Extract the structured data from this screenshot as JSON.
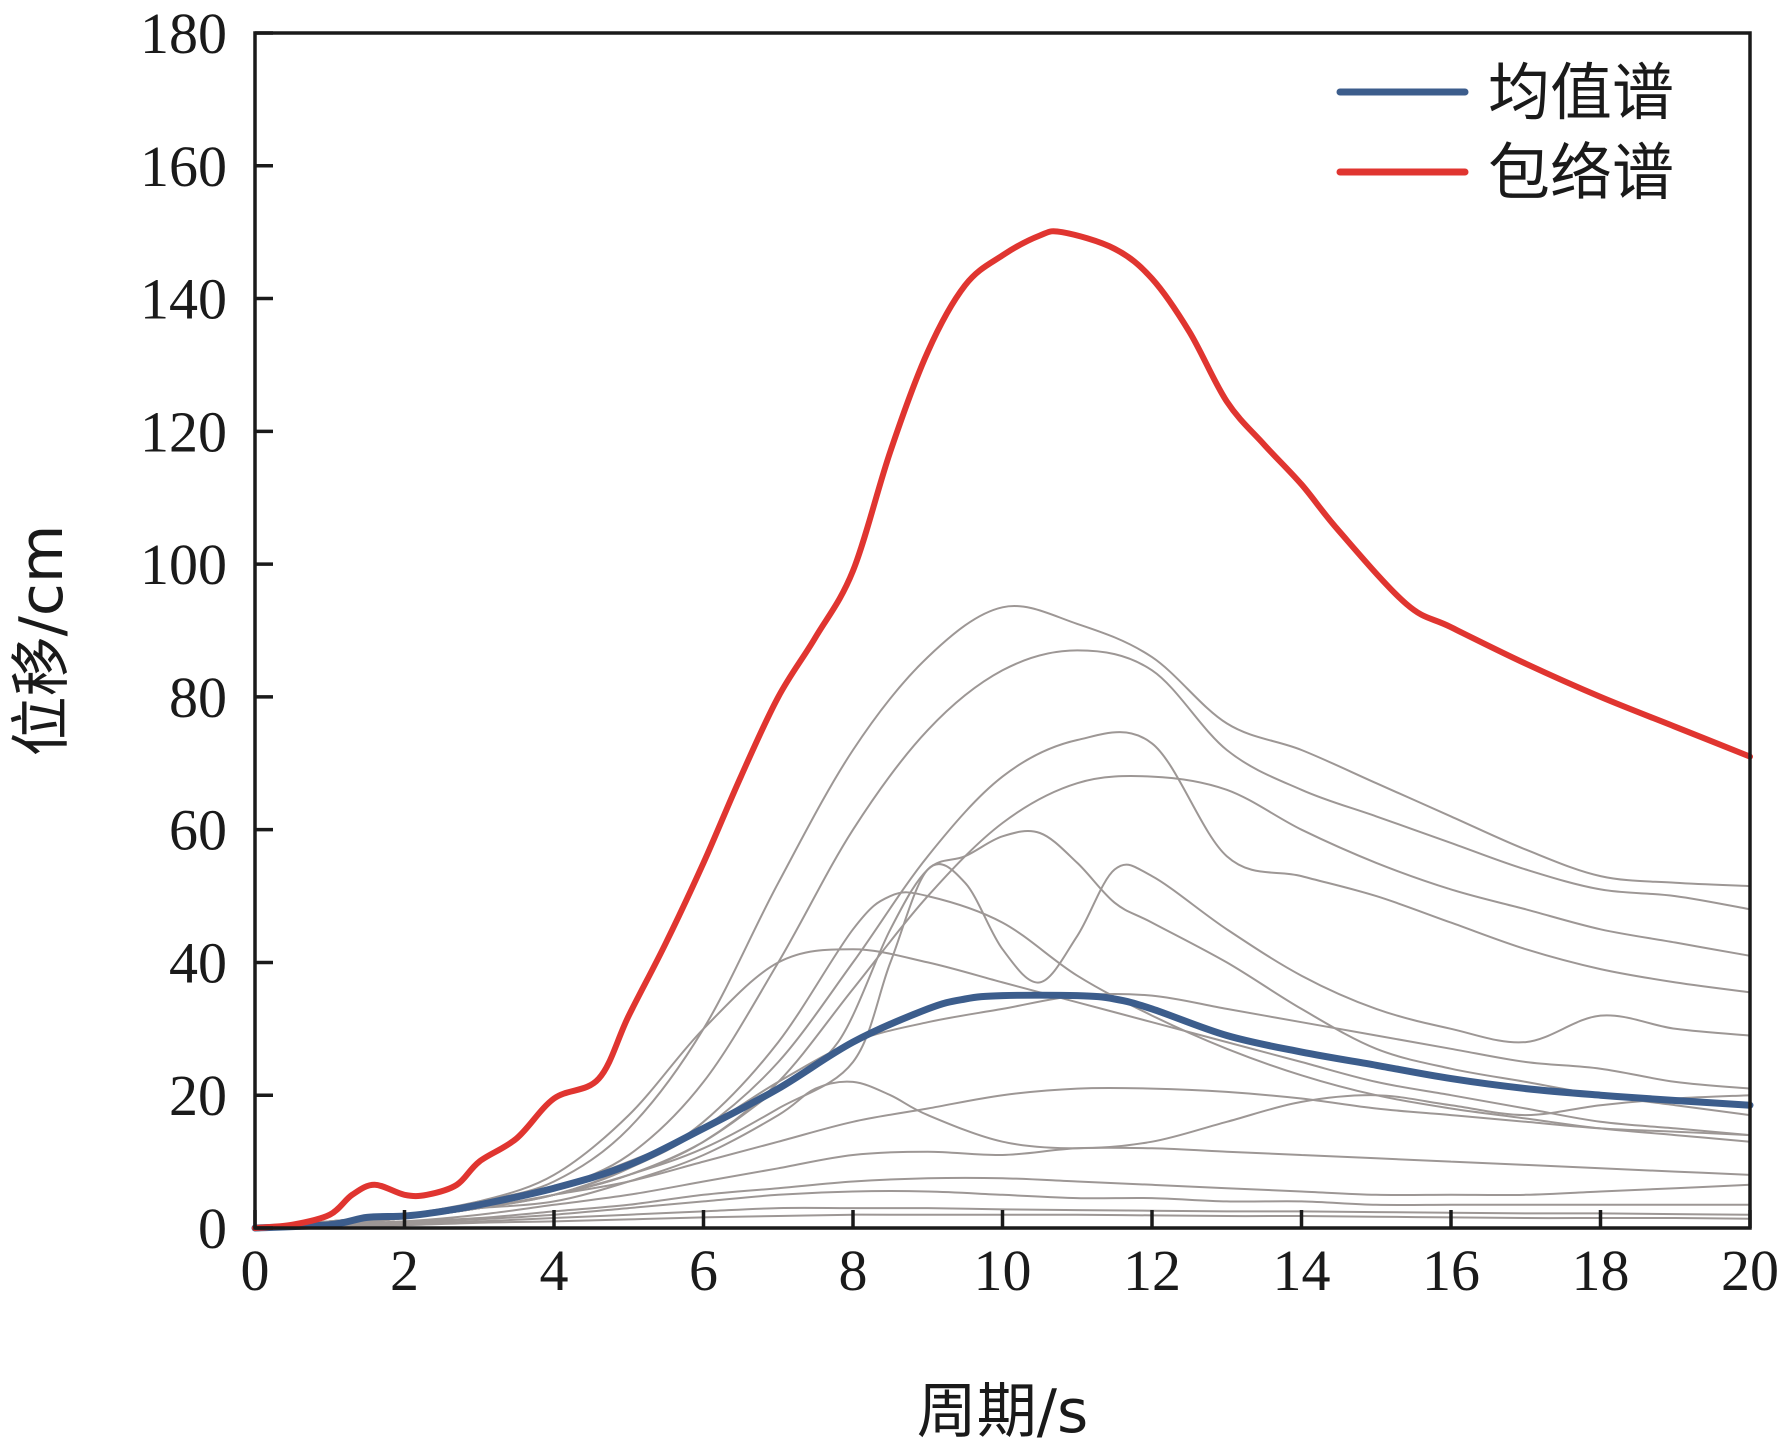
{
  "chart_data": {
    "type": "line",
    "xlabel": "周期/s",
    "ylabel": "位移/cm",
    "xlim": [
      0,
      20
    ],
    "ylim": [
      0,
      180
    ],
    "xticks": [
      0,
      2,
      4,
      6,
      8,
      10,
      12,
      14,
      16,
      18,
      20
    ],
    "yticks": [
      0,
      20,
      40,
      60,
      80,
      100,
      120,
      140,
      160,
      180
    ],
    "grid": false,
    "legend": "top-right",
    "series": [
      {
        "name": "均值谱",
        "color": "#3c5d8c",
        "role": "mean",
        "x": [
          0,
          1,
          1.5,
          2,
          2.5,
          3,
          4,
          5,
          6,
          7,
          8,
          9,
          9.5,
          10,
          11,
          11.5,
          12,
          13,
          14,
          15,
          16,
          17,
          18,
          19,
          20
        ],
        "y": [
          0,
          0.5,
          1.6,
          1.8,
          2.5,
          3.5,
          6,
          9.5,
          15,
          21,
          28,
          33,
          34.5,
          35,
          35,
          34.5,
          33,
          29,
          26.5,
          24.5,
          22.5,
          21,
          20,
          19.2,
          18.5
        ]
      },
      {
        "name": "包络谱",
        "color": "#e03530",
        "role": "envelope",
        "x": [
          0,
          0.5,
          1,
          1.3,
          1.6,
          2,
          2.3,
          2.7,
          3,
          3.5,
          4,
          4.6,
          5,
          5.5,
          6,
          6.5,
          7,
          7.5,
          8,
          8.5,
          9,
          9.5,
          10,
          10.5,
          10.8,
          11.5,
          12,
          12.5,
          13,
          13.5,
          14,
          14.5,
          15.4,
          16,
          17,
          18,
          19,
          20
        ],
        "y": [
          0,
          0.5,
          2,
          5,
          6.5,
          5,
          5,
          6.5,
          10,
          13.5,
          19.5,
          22.5,
          32,
          43,
          55,
          68,
          80,
          89,
          99,
          117,
          132,
          142,
          146.5,
          149.5,
          150,
          147.5,
          143,
          135,
          124.5,
          118,
          112,
          105,
          94,
          90.5,
          85,
          80,
          75.5,
          71
        ]
      }
    ],
    "background_series": [
      {
        "x": [
          0,
          1,
          2,
          3,
          4,
          5,
          6,
          7,
          8,
          9,
          10,
          11,
          12,
          13,
          14,
          15,
          16,
          17,
          18,
          19,
          20
        ],
        "y": [
          0,
          1,
          2,
          4,
          7,
          15,
          30,
          52,
          72,
          86,
          93.5,
          91,
          86,
          76,
          72,
          67,
          62,
          57,
          53,
          52,
          51.5
        ]
      },
      {
        "x": [
          0,
          1,
          2,
          3,
          4,
          5,
          6,
          7,
          8,
          9,
          10,
          11,
          12,
          13,
          14,
          15,
          16,
          17,
          18,
          19,
          20
        ],
        "y": [
          0,
          1,
          2,
          3.5,
          6,
          11,
          22,
          40,
          60,
          75,
          84,
          87,
          84,
          72,
          66,
          62,
          58,
          54,
          51,
          50,
          48
        ]
      },
      {
        "x": [
          0,
          1,
          2,
          3,
          4,
          5,
          6,
          7,
          8,
          9,
          10,
          11,
          12,
          13,
          14,
          15,
          16,
          17,
          18,
          19,
          20
        ],
        "y": [
          0,
          0.6,
          1.5,
          3,
          5,
          9,
          15,
          25,
          40,
          56,
          68,
          73.5,
          73,
          56,
          53,
          50,
          46,
          42,
          39,
          37,
          35.5
        ]
      },
      {
        "x": [
          0,
          1,
          2,
          3,
          4,
          5,
          6,
          7,
          8,
          9,
          10,
          11,
          12,
          13,
          14,
          15,
          16,
          17,
          18,
          19,
          20
        ],
        "y": [
          0,
          0.5,
          1.5,
          3,
          5,
          8,
          13,
          22,
          36,
          50,
          61,
          67,
          68,
          66,
          60,
          55,
          51,
          48,
          45,
          43,
          41
        ]
      },
      {
        "x": [
          0,
          1,
          2,
          3,
          4,
          5,
          6,
          7,
          7.8,
          8.5,
          9,
          9.5,
          10,
          10.5,
          11,
          11.5,
          12,
          13,
          14,
          15,
          16,
          17,
          18,
          19,
          20
        ],
        "y": [
          0,
          0.5,
          1.5,
          3,
          5,
          8,
          13,
          21,
          28,
          45,
          54,
          56,
          59,
          59.5,
          55,
          49,
          46,
          40,
          33,
          27,
          24,
          22,
          20,
          18.5,
          17
        ]
      },
      {
        "x": [
          0,
          1,
          2,
          3,
          4,
          5,
          6,
          7,
          8,
          8.5,
          9,
          9.5,
          10,
          10.5,
          11,
          11.5,
          12,
          13,
          14,
          15,
          16,
          17,
          18,
          19,
          20
        ],
        "y": [
          0,
          0.5,
          1.5,
          3,
          5,
          8,
          12,
          18,
          25,
          40,
          54,
          52,
          42,
          37,
          44,
          54,
          53,
          45,
          38,
          33,
          30,
          28,
          32,
          30,
          29
        ]
      },
      {
        "x": [
          0,
          1,
          2,
          3,
          4,
          5,
          6,
          7,
          8,
          8.5,
          9,
          10,
          11,
          12,
          13,
          14,
          15,
          16,
          17,
          18,
          19,
          20
        ],
        "y": [
          0,
          0.5,
          1.5,
          3,
          5,
          9,
          16,
          28,
          45,
          50,
          50,
          46,
          38,
          32,
          27,
          23,
          20,
          18,
          16.5,
          15,
          14,
          13
        ]
      },
      {
        "x": [
          0,
          1,
          2,
          3,
          4,
          5,
          6,
          7,
          8,
          9,
          10,
          11,
          12,
          13,
          14,
          15,
          16,
          17,
          18,
          19,
          20
        ],
        "y": [
          0,
          1,
          2,
          4,
          8,
          17,
          30,
          40,
          42,
          40,
          37,
          34,
          31,
          28,
          25,
          22,
          20,
          18,
          16,
          15,
          14
        ]
      },
      {
        "x": [
          0,
          1,
          2,
          3,
          4,
          5,
          6,
          7,
          8,
          9,
          10,
          11,
          12,
          13,
          14,
          15,
          16,
          17,
          18,
          19,
          20
        ],
        "y": [
          0,
          1,
          2,
          3.5,
          6,
          10,
          15,
          22,
          28,
          31,
          33,
          35,
          35,
          33,
          31,
          29,
          27,
          25,
          24,
          22,
          21
        ]
      },
      {
        "x": [
          0,
          1,
          2,
          3,
          4,
          5,
          6,
          7,
          7.5,
          8,
          8.5,
          9,
          10,
          11,
          12,
          13,
          14,
          15,
          16,
          17,
          18,
          19,
          20
        ],
        "y": [
          0,
          1,
          2,
          3,
          4,
          7,
          11,
          17,
          21,
          22,
          20,
          17,
          13,
          12,
          13,
          16,
          19,
          20,
          18.5,
          17,
          18.5,
          19.5,
          20
        ]
      },
      {
        "x": [
          0,
          1,
          2,
          3,
          4,
          5,
          6,
          7,
          8,
          9,
          10,
          11,
          12,
          13,
          14,
          15,
          16,
          17,
          18,
          19,
          20
        ],
        "y": [
          0,
          0.5,
          1.5,
          3,
          5,
          7,
          10,
          13,
          16,
          18,
          20,
          21,
          21,
          20.5,
          19.5,
          18,
          17,
          16,
          15,
          14.5,
          14
        ]
      },
      {
        "x": [
          0,
          1,
          2,
          3,
          4,
          5,
          6,
          7,
          8,
          9,
          10,
          11,
          12,
          13,
          14,
          15,
          16,
          17,
          18,
          19,
          20
        ],
        "y": [
          0,
          0.5,
          1,
          2,
          3.5,
          5,
          7,
          9,
          11,
          11.5,
          11,
          12,
          12,
          11.5,
          11,
          10.5,
          10,
          9.5,
          9,
          8.5,
          8
        ]
      },
      {
        "x": [
          0,
          1,
          2,
          3,
          4,
          5,
          6,
          7,
          8,
          9,
          10,
          11,
          12,
          13,
          14,
          15,
          16,
          17,
          18,
          19,
          20
        ],
        "y": [
          0,
          0.5,
          1,
          1.5,
          2.5,
          3.5,
          5,
          6,
          7,
          7.5,
          7.5,
          7,
          6.5,
          6,
          5.5,
          5,
          5,
          5,
          5.5,
          6,
          6.5
        ]
      },
      {
        "x": [
          0,
          1,
          2,
          3,
          4,
          5,
          6,
          7,
          8,
          9,
          10,
          11,
          12,
          13,
          14,
          15,
          16,
          17,
          18,
          19,
          20
        ],
        "y": [
          0,
          0.3,
          0.8,
          1.3,
          2,
          3,
          4,
          5,
          5.5,
          5.5,
          5,
          4.5,
          4.5,
          4,
          4,
          3.5,
          3.5,
          3.5,
          3.5,
          3.5,
          3.5
        ]
      },
      {
        "x": [
          0,
          1,
          2,
          3,
          4,
          5,
          6,
          7,
          8,
          9,
          10,
          11,
          12,
          13,
          14,
          15,
          16,
          17,
          18,
          19,
          20
        ],
        "y": [
          0,
          0.3,
          0.6,
          1,
          1.5,
          2,
          2.5,
          3,
          3,
          3,
          2.8,
          2.7,
          2.6,
          2.5,
          2.5,
          2.4,
          2.3,
          2.2,
          2.2,
          2.1,
          2
        ]
      },
      {
        "x": [
          0,
          1,
          2,
          3,
          4,
          5,
          6,
          7,
          8,
          9,
          10,
          11,
          12,
          13,
          14,
          15,
          16,
          17,
          18,
          19,
          20
        ],
        "y": [
          0,
          0.2,
          0.4,
          0.8,
          1,
          1.3,
          1.6,
          1.8,
          2,
          2,
          2,
          2,
          1.9,
          1.8,
          1.8,
          1.7,
          1.6,
          1.5,
          1.5,
          1.5,
          1.4
        ]
      }
    ]
  }
}
